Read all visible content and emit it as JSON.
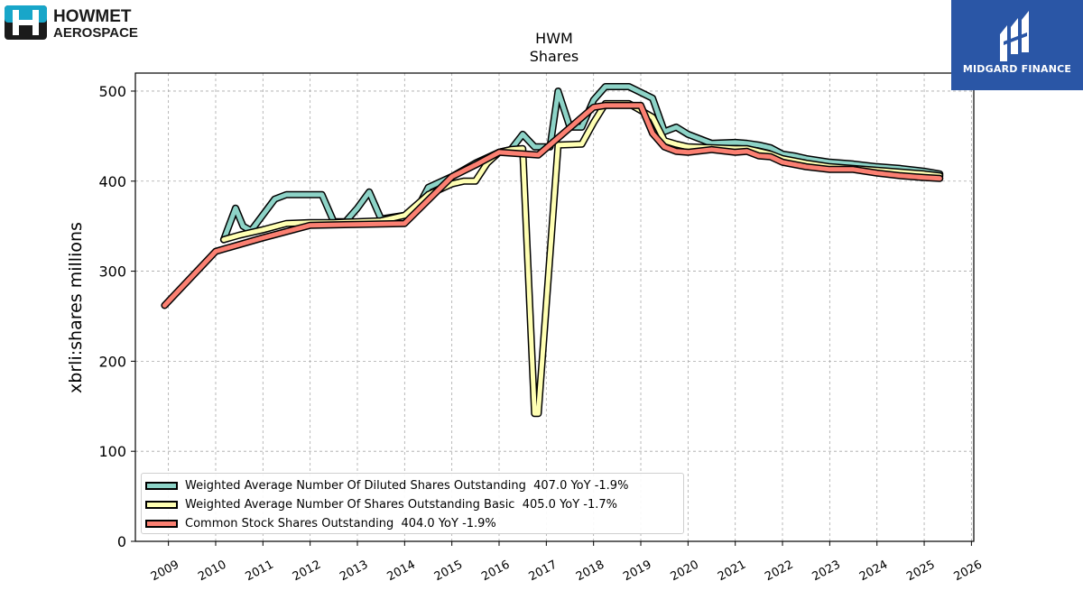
{
  "branding": {
    "company_line1": "HOWMET",
    "company_line2": "AEROSPACE",
    "publisher": "MIDGARD FINANCE",
    "publisher_bg": "#2a56a6"
  },
  "chart_data": {
    "type": "line",
    "title": "HWM",
    "subtitle": "Shares",
    "xlabel": "",
    "ylabel": "xbrli:shares millions",
    "xlim": [
      2008.3,
      2026.05
    ],
    "ylim": [
      0,
      520
    ],
    "x_ticks": [
      "2009",
      "2010",
      "2011",
      "2012",
      "2013",
      "2014",
      "2015",
      "2016",
      "2017",
      "2018",
      "2019",
      "2020",
      "2021",
      "2022",
      "2023",
      "2024",
      "2025",
      "2026"
    ],
    "y_ticks": [
      0,
      100,
      200,
      300,
      400,
      500
    ],
    "grid": true,
    "legend_position": "lower-left",
    "series": [
      {
        "name": "Weighted Average Number Of Diluted Shares Outstanding",
        "legend_label": "Weighted Average Number Of Diluted Shares Outstanding  407.0 YoY -1.9%",
        "color": "#8dd3c7",
        "points": [
          [
            2010.17,
            335
          ],
          [
            2010.42,
            370
          ],
          [
            2010.58,
            350
          ],
          [
            2010.75,
            345
          ],
          [
            2011.25,
            380
          ],
          [
            2011.5,
            385
          ],
          [
            2012.0,
            385
          ],
          [
            2012.25,
            385
          ],
          [
            2012.5,
            355
          ],
          [
            2012.75,
            355
          ],
          [
            2013.0,
            370
          ],
          [
            2013.25,
            388
          ],
          [
            2013.5,
            358
          ],
          [
            2014.0,
            362
          ],
          [
            2014.25,
            368
          ],
          [
            2014.5,
            393
          ],
          [
            2015.0,
            405
          ],
          [
            2015.5,
            420
          ],
          [
            2016.0,
            432
          ],
          [
            2016.25,
            435
          ],
          [
            2016.5,
            452
          ],
          [
            2016.75,
            438
          ],
          [
            2017.08,
            438
          ],
          [
            2017.25,
            500
          ],
          [
            2017.5,
            460
          ],
          [
            2017.75,
            460
          ],
          [
            2018.0,
            490
          ],
          [
            2018.25,
            505
          ],
          [
            2018.75,
            505
          ],
          [
            2019.25,
            492
          ],
          [
            2019.5,
            455
          ],
          [
            2019.75,
            460
          ],
          [
            2020.0,
            452
          ],
          [
            2020.5,
            442
          ],
          [
            2021.0,
            443
          ],
          [
            2021.25,
            442
          ],
          [
            2021.5,
            440
          ],
          [
            2021.75,
            437
          ],
          [
            2022.0,
            430
          ],
          [
            2022.25,
            428
          ],
          [
            2022.5,
            425
          ],
          [
            2023.0,
            421
          ],
          [
            2023.5,
            419
          ],
          [
            2024.0,
            416
          ],
          [
            2024.5,
            414
          ],
          [
            2025.0,
            411
          ],
          [
            2025.33,
            408
          ]
        ]
      },
      {
        "name": "Weighted Average Number Of Shares Outstanding Basic",
        "legend_label": "Weighted Average Number Of Shares Outstanding Basic  405.0 YoY -1.7%",
        "color": "#ffffb3",
        "points": [
          [
            2010.17,
            335
          ],
          [
            2010.5,
            340
          ],
          [
            2011.0,
            346
          ],
          [
            2011.5,
            353
          ],
          [
            2012.0,
            354
          ],
          [
            2012.5,
            354
          ],
          [
            2013.0,
            355
          ],
          [
            2013.5,
            356
          ],
          [
            2014.0,
            362
          ],
          [
            2014.5,
            385
          ],
          [
            2015.0,
            397
          ],
          [
            2015.25,
            400
          ],
          [
            2015.5,
            400
          ],
          [
            2015.75,
            420
          ],
          [
            2016.0,
            432
          ],
          [
            2016.25,
            435
          ],
          [
            2016.5,
            436
          ],
          [
            2016.75,
            142
          ],
          [
            2016.83,
            142
          ],
          [
            2017.25,
            440
          ],
          [
            2017.75,
            441
          ],
          [
            2018.0,
            465
          ],
          [
            2018.25,
            486
          ],
          [
            2018.75,
            486
          ],
          [
            2019.25,
            471
          ],
          [
            2019.5,
            445
          ],
          [
            2019.75,
            441
          ],
          [
            2020.0,
            438
          ],
          [
            2020.5,
            437
          ],
          [
            2021.0,
            436
          ],
          [
            2021.25,
            436
          ],
          [
            2021.5,
            433
          ],
          [
            2021.75,
            430
          ],
          [
            2022.0,
            425
          ],
          [
            2022.5,
            420
          ],
          [
            2023.0,
            416
          ],
          [
            2023.5,
            414
          ],
          [
            2024.0,
            412
          ],
          [
            2024.5,
            410
          ],
          [
            2025.0,
            408
          ],
          [
            2025.33,
            406
          ]
        ]
      },
      {
        "name": "Common Stock Shares Outstanding",
        "legend_label": "Common Stock Shares Outstanding  404.0 YoY -1.9%",
        "color": "#fb8072",
        "points": [
          [
            2008.92,
            262
          ],
          [
            2010.0,
            322
          ],
          [
            2011.0,
            337
          ],
          [
            2012.0,
            351
          ],
          [
            2013.0,
            352
          ],
          [
            2014.0,
            353
          ],
          [
            2015.0,
            405
          ],
          [
            2015.5,
            418
          ],
          [
            2016.0,
            432
          ],
          [
            2016.83,
            429
          ],
          [
            2018.0,
            482
          ],
          [
            2018.25,
            484
          ],
          [
            2019.0,
            484
          ],
          [
            2019.25,
            453
          ],
          [
            2019.5,
            438
          ],
          [
            2019.75,
            433
          ],
          [
            2020.0,
            432
          ],
          [
            2020.5,
            435
          ],
          [
            2021.0,
            432
          ],
          [
            2021.25,
            433
          ],
          [
            2021.5,
            428
          ],
          [
            2021.75,
            427
          ],
          [
            2022.0,
            421
          ],
          [
            2022.5,
            416
          ],
          [
            2023.0,
            413
          ],
          [
            2023.5,
            413
          ],
          [
            2024.0,
            409
          ],
          [
            2024.5,
            406
          ],
          [
            2025.0,
            404
          ],
          [
            2025.33,
            403
          ]
        ]
      }
    ]
  }
}
